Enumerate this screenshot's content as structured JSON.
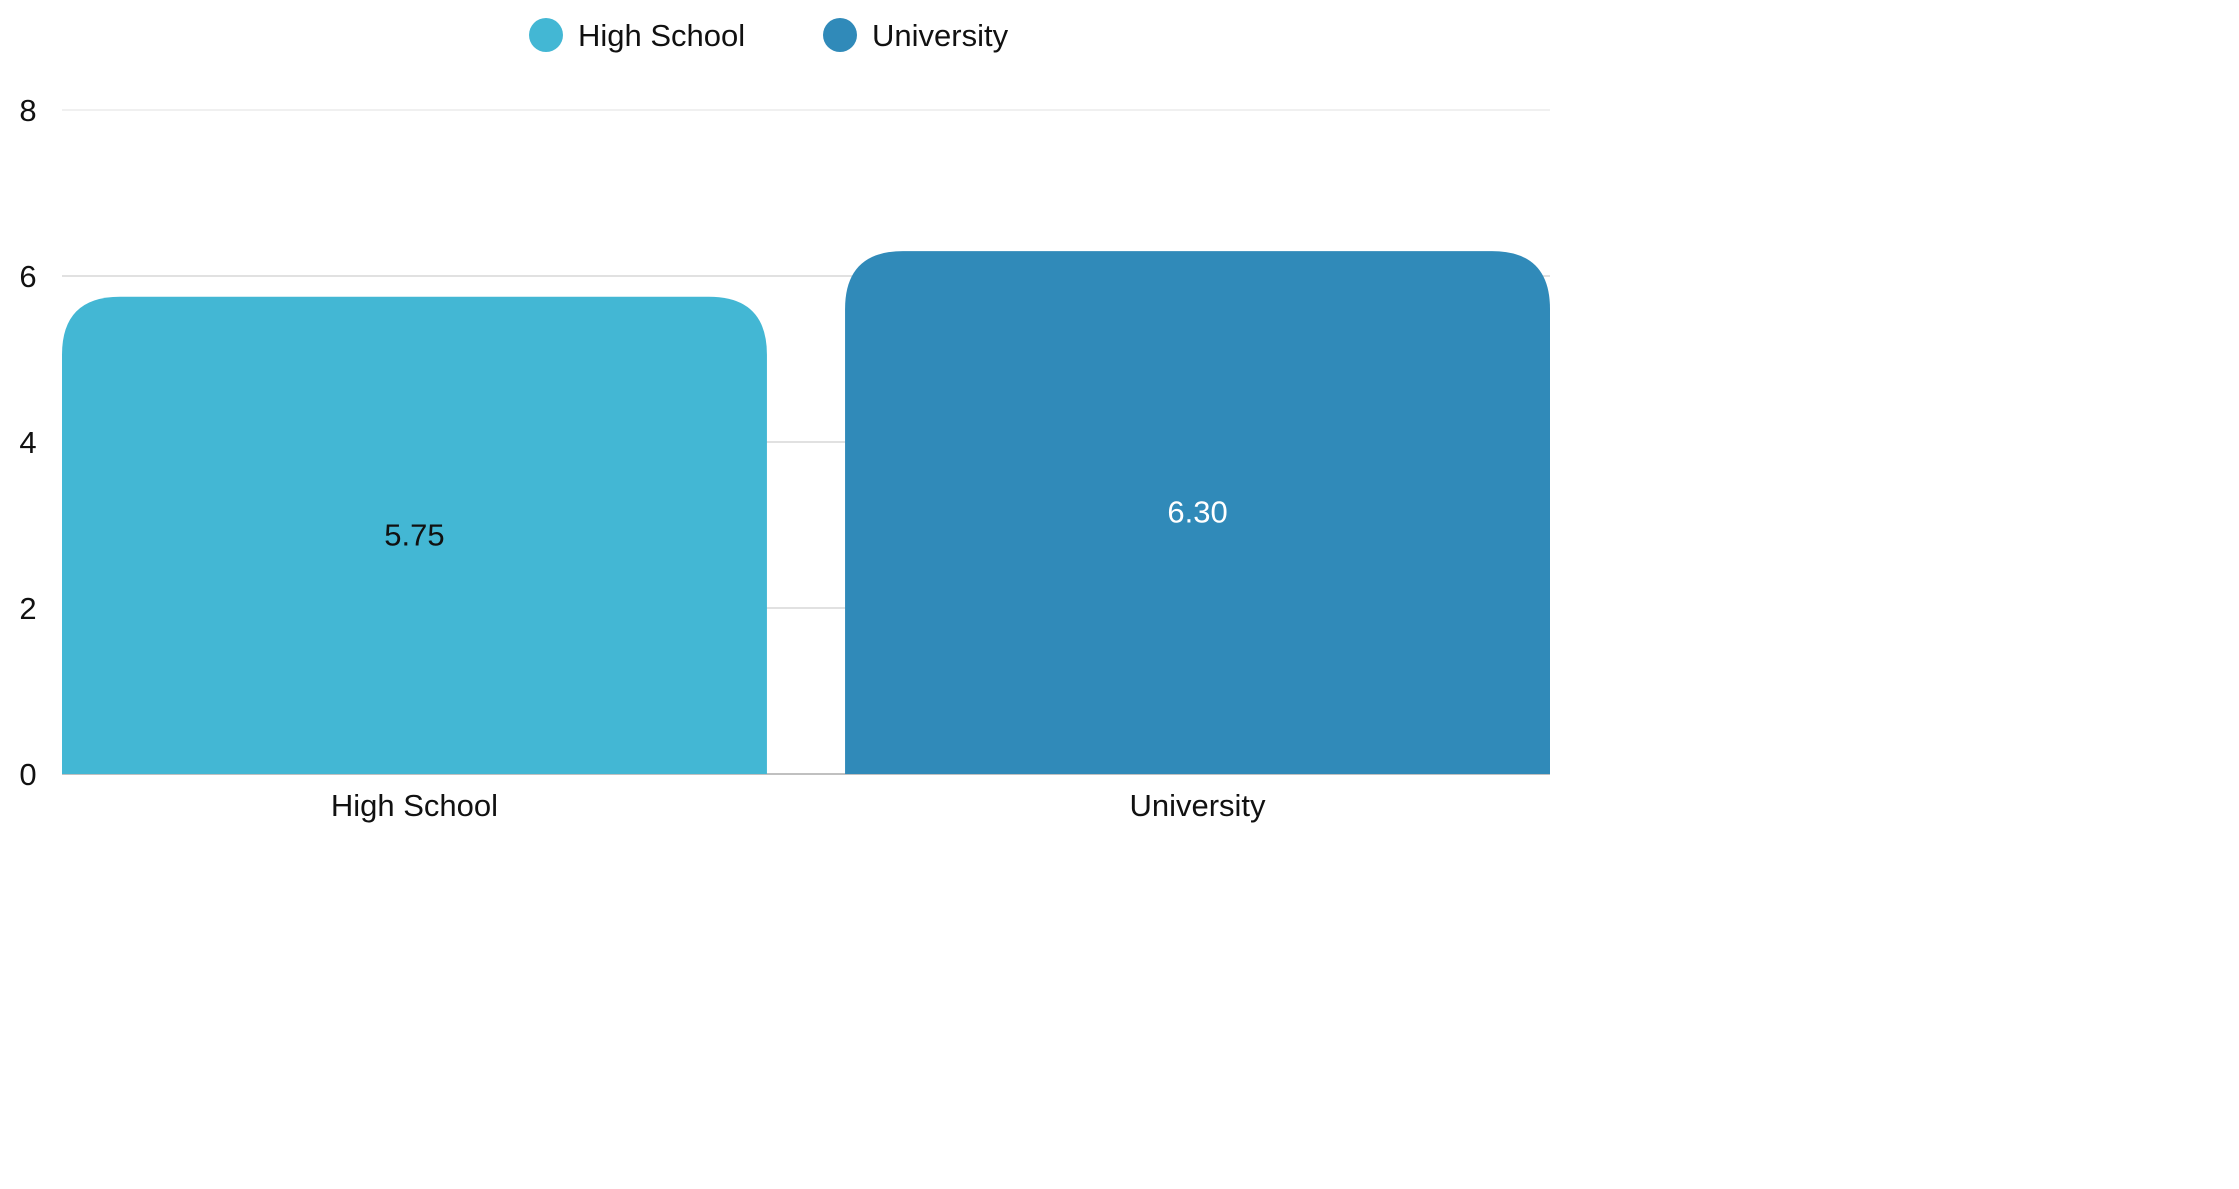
{
  "chart_data": {
    "type": "bar",
    "title": "",
    "xlabel": "",
    "ylabel": "",
    "categories": [
      "High School",
      "University"
    ],
    "values": [
      5.75,
      6.3
    ],
    "value_labels": [
      "5.75",
      "6.30"
    ],
    "colors": [
      "#43b7d4",
      "#308ab9"
    ],
    "label_colors": [
      "#111111",
      "#ffffff"
    ],
    "ylim": [
      0,
      8
    ],
    "yticks": [
      0,
      2,
      4,
      6,
      8
    ],
    "grid": true,
    "legend": {
      "position": "top-center",
      "entries": [
        {
          "label": "High School",
          "color": "#43b7d4"
        },
        {
          "label": "University",
          "color": "#308ab9"
        }
      ]
    }
  }
}
